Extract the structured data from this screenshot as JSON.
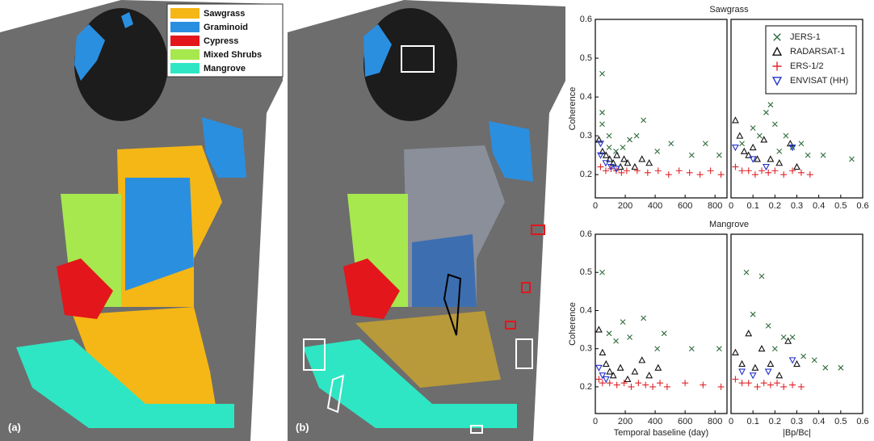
{
  "maps": {
    "legend": [
      {
        "label": "Sawgrass",
        "color": "#f5b716"
      },
      {
        "label": "Graminoid",
        "color": "#2b8fe0"
      },
      {
        "label": "Cypress",
        "color": "#e3161b"
      },
      {
        "label": "Mixed Shrubs",
        "color": "#a6e84e"
      },
      {
        "label": "Mangrove",
        "color": "#2ee6c4"
      }
    ],
    "labels": [
      "(a)",
      "(b)"
    ]
  },
  "chart_data": [
    {
      "type": "scatter",
      "title": "Sawgrass",
      "ylabel": "Coherence",
      "xlim": [
        0,
        880
      ],
      "xticks": [
        0,
        200,
        400,
        600,
        800
      ],
      "ylim": [
        0.14,
        0.6
      ],
      "yticks": [
        0.2,
        0.3,
        0.4,
        0.5,
        0.6
      ],
      "series": [
        {
          "color": "#2e6b3a",
          "marker": "x",
          "x": [
            46,
            92,
            138,
            184,
            230,
            276,
            322,
            414,
            506,
            644,
            736,
            828,
            46,
            92,
            46
          ],
          "values": [
            0.46,
            0.3,
            0.26,
            0.27,
            0.29,
            0.3,
            0.34,
            0.26,
            0.28,
            0.25,
            0.28,
            0.25,
            0.36,
            0.27,
            0.33
          ]
        },
        {
          "color": "#111111",
          "marker": "triangle",
          "x": [
            24,
            48,
            72,
            96,
            120,
            144,
            168,
            192,
            216,
            264,
            312,
            360
          ],
          "values": [
            0.29,
            0.26,
            0.25,
            0.24,
            0.23,
            0.25,
            0.22,
            0.24,
            0.23,
            0.22,
            0.24,
            0.23
          ]
        },
        {
          "color": "#e0262b",
          "marker": "plus",
          "x": [
            35,
            70,
            105,
            140,
            175,
            210,
            280,
            350,
            420,
            490,
            560,
            630,
            700,
            770,
            840
          ],
          "values": [
            0.22,
            0.21,
            0.215,
            0.21,
            0.205,
            0.21,
            0.21,
            0.205,
            0.21,
            0.2,
            0.21,
            0.205,
            0.2,
            0.21,
            0.2
          ]
        },
        {
          "color": "#2233cc",
          "marker": "down-triangle",
          "x": [
            35,
            35,
            70,
            105,
            140
          ],
          "values": [
            0.28,
            0.25,
            0.23,
            0.22,
            0.215
          ]
        }
      ]
    },
    {
      "type": "scatter",
      "legend": "upper right",
      "xlim": [
        0,
        0.6
      ],
      "xticks": [
        0,
        0.1,
        0.2,
        0.3,
        0.4,
        0.5,
        0.6
      ],
      "ylim": [
        0.14,
        0.6
      ],
      "series": [
        {
          "name": "JERS-1",
          "color": "#2e6b3a",
          "marker": "x",
          "x": [
            0.05,
            0.1,
            0.13,
            0.16,
            0.18,
            0.2,
            0.22,
            0.25,
            0.28,
            0.32,
            0.35,
            0.42,
            0.55
          ],
          "values": [
            0.28,
            0.32,
            0.3,
            0.36,
            0.38,
            0.33,
            0.26,
            0.3,
            0.27,
            0.28,
            0.25,
            0.25,
            0.24
          ]
        },
        {
          "name": "RADARSAT-1",
          "color": "#111111",
          "marker": "triangle",
          "x": [
            0.02,
            0.04,
            0.06,
            0.08,
            0.1,
            0.12,
            0.15,
            0.18,
            0.22,
            0.27,
            0.3
          ],
          "values": [
            0.34,
            0.3,
            0.26,
            0.25,
            0.27,
            0.24,
            0.29,
            0.24,
            0.23,
            0.28,
            0.22
          ]
        },
        {
          "name": "ERS-1/2",
          "color": "#e0262b",
          "marker": "plus",
          "x": [
            0.02,
            0.05,
            0.08,
            0.11,
            0.14,
            0.17,
            0.2,
            0.24,
            0.28,
            0.32,
            0.36
          ],
          "values": [
            0.22,
            0.21,
            0.21,
            0.2,
            0.21,
            0.205,
            0.21,
            0.2,
            0.21,
            0.205,
            0.2
          ]
        },
        {
          "name": "ENVISAT (HH)",
          "color": "#2233cc",
          "marker": "down-triangle",
          "x": [
            0.02,
            0.1,
            0.16,
            0.28
          ],
          "values": [
            0.27,
            0.24,
            0.22,
            0.27
          ]
        }
      ]
    },
    {
      "type": "scatter",
      "title": "Mangrove",
      "ylabel": "Coherence",
      "xlabel": "Temporal baseline (day)",
      "xlim": [
        0,
        880
      ],
      "xticks": [
        0,
        200,
        400,
        600,
        800
      ],
      "ylim": [
        0.13,
        0.6
      ],
      "yticks": [
        0.2,
        0.3,
        0.4,
        0.5,
        0.6
      ],
      "series": [
        {
          "color": "#2e6b3a",
          "marker": "x",
          "x": [
            46,
            92,
            138,
            184,
            230,
            322,
            414,
            460,
            644,
            828
          ],
          "values": [
            0.5,
            0.34,
            0.32,
            0.37,
            0.33,
            0.38,
            0.3,
            0.34,
            0.3,
            0.3
          ]
        },
        {
          "color": "#111111",
          "marker": "triangle",
          "x": [
            24,
            48,
            72,
            96,
            120,
            168,
            216,
            264,
            312,
            360,
            420
          ],
          "values": [
            0.35,
            0.29,
            0.26,
            0.24,
            0.23,
            0.25,
            0.22,
            0.24,
            0.27,
            0.23,
            0.25
          ]
        },
        {
          "color": "#e0262b",
          "marker": "plus",
          "x": [
            24,
            48,
            96,
            144,
            192,
            240,
            288,
            336,
            384,
            432,
            480,
            600,
            720,
            840
          ],
          "values": [
            0.22,
            0.21,
            0.21,
            0.205,
            0.21,
            0.2,
            0.21,
            0.205,
            0.2,
            0.21,
            0.2,
            0.21,
            0.205,
            0.2
          ]
        },
        {
          "color": "#2233cc",
          "marker": "down-triangle",
          "x": [
            24,
            48,
            72
          ],
          "values": [
            0.25,
            0.23,
            0.22
          ]
        }
      ]
    },
    {
      "type": "scatter",
      "xlabel": "|Bp/Bc|",
      "xlim": [
        0,
        0.6
      ],
      "xticks": [
        0,
        0.1,
        0.2,
        0.3,
        0.4,
        0.5,
        0.6
      ],
      "ylim": [
        0.13,
        0.6
      ],
      "series": [
        {
          "color": "#2e6b3a",
          "marker": "x",
          "x": [
            0.07,
            0.1,
            0.14,
            0.17,
            0.2,
            0.24,
            0.28,
            0.33,
            0.38,
            0.43,
            0.5
          ],
          "values": [
            0.5,
            0.39,
            0.49,
            0.36,
            0.3,
            0.33,
            0.33,
            0.28,
            0.27,
            0.25,
            0.25
          ]
        },
        {
          "color": "#111111",
          "marker": "triangle",
          "x": [
            0.02,
            0.05,
            0.08,
            0.11,
            0.14,
            0.18,
            0.22,
            0.26,
            0.3
          ],
          "values": [
            0.29,
            0.26,
            0.34,
            0.25,
            0.3,
            0.26,
            0.23,
            0.32,
            0.26
          ]
        },
        {
          "color": "#e0262b",
          "marker": "plus",
          "x": [
            0.02,
            0.05,
            0.08,
            0.12,
            0.15,
            0.18,
            0.21,
            0.24,
            0.28,
            0.32
          ],
          "values": [
            0.22,
            0.21,
            0.21,
            0.2,
            0.21,
            0.205,
            0.21,
            0.2,
            0.205,
            0.2
          ]
        },
        {
          "color": "#2233cc",
          "marker": "down-triangle",
          "x": [
            0.05,
            0.1,
            0.17,
            0.28
          ],
          "values": [
            0.24,
            0.23,
            0.24,
            0.27
          ]
        }
      ]
    }
  ]
}
